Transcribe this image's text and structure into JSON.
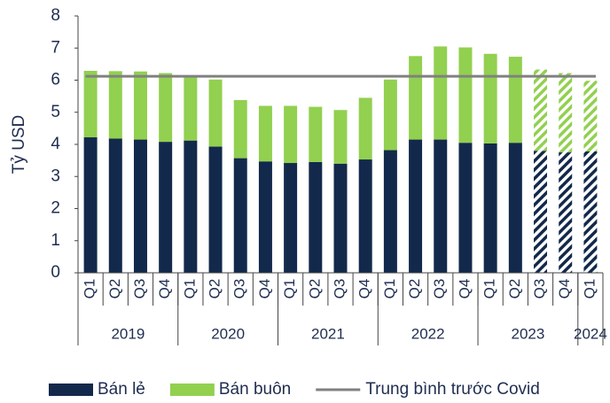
{
  "chart_data": {
    "type": "stacked-bar",
    "ylabel": "Tỷ USD",
    "categories": [
      "Q1",
      "Q2",
      "Q3",
      "Q4",
      "Q1",
      "Q2",
      "Q3",
      "Q4",
      "Q1",
      "Q2",
      "Q3",
      "Q4",
      "Q1",
      "Q2",
      "Q3",
      "Q4",
      "Q1",
      "Q2",
      "Q3",
      "Q4",
      "Q1"
    ],
    "category_groups": [
      {
        "label": "2019",
        "size": 4
      },
      {
        "label": "2020",
        "size": 4
      },
      {
        "label": "2021",
        "size": 4
      },
      {
        "label": "2022",
        "size": 4
      },
      {
        "label": "2023",
        "size": 4
      },
      {
        "label": "2024",
        "size": 1
      }
    ],
    "series": [
      {
        "name": "Bán lẻ",
        "color": "#13294b",
        "values": [
          4.22,
          4.18,
          4.15,
          4.08,
          4.12,
          3.93,
          3.57,
          3.47,
          3.42,
          3.45,
          3.4,
          3.53,
          3.82,
          4.15,
          4.15,
          4.05,
          4.03,
          4.05,
          3.8,
          3.75,
          3.78
        ]
      },
      {
        "name": "Bán buôn",
        "color": "#92d050",
        "values": [
          2.07,
          2.1,
          2.12,
          2.14,
          2.0,
          2.09,
          1.81,
          1.73,
          1.78,
          1.72,
          1.67,
          1.92,
          2.2,
          2.6,
          2.9,
          2.97,
          2.79,
          2.68,
          2.53,
          2.47,
          2.2
        ]
      }
    ],
    "hatched": [
      false,
      false,
      false,
      false,
      false,
      false,
      false,
      false,
      false,
      false,
      false,
      false,
      false,
      false,
      false,
      false,
      false,
      false,
      true,
      true,
      true
    ],
    "reference_lines": [
      {
        "name": "Trung bình trước Covid",
        "value": 6.12,
        "color": "#808080"
      }
    ],
    "ylim": [
      0,
      8
    ],
    "yticks": [
      0,
      1,
      2,
      3,
      4,
      5,
      6,
      7,
      8
    ],
    "legend": "bottom"
  }
}
